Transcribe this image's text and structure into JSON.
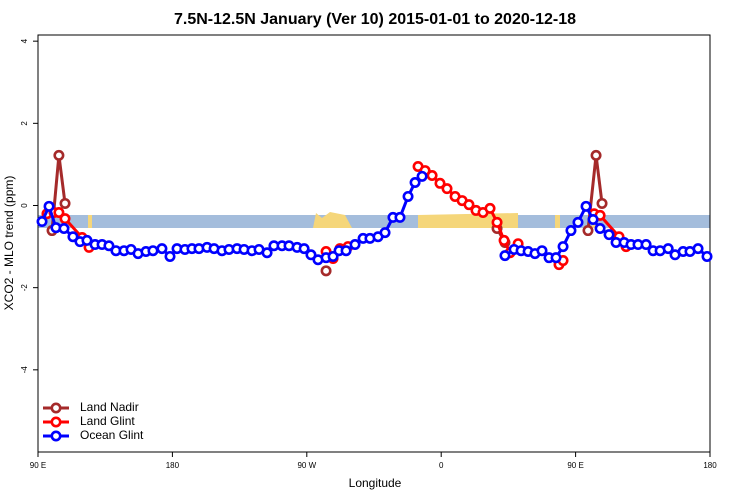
{
  "chart_data": {
    "type": "line",
    "title": "7.5N-12.5N January (Ver 10)   2015-01-01 to 2020-12-18",
    "xlabel": "Longitude",
    "ylabel": "XCO2 - MLO trend (ppm)",
    "xlim": [
      90,
      540
    ],
    "ylim": [
      -6,
      4.15
    ],
    "xticks": [
      {
        "value": 90,
        "label": "90 E"
      },
      {
        "value": 180,
        "label": "180"
      },
      {
        "value": 270,
        "label": "90 W"
      },
      {
        "value": 360,
        "label": "0"
      },
      {
        "value": 450,
        "label": "90 E"
      },
      {
        "value": 540,
        "label": "180"
      }
    ],
    "yticks": [
      -4,
      -2,
      0,
      2,
      4
    ],
    "legend": "bottomleft",
    "series": [
      {
        "name": "Land Nadir",
        "color": "#a52a2a",
        "x": [
          99.4,
          104,
          108.1,
          200,
          282.9,
          350,
          397.4,
          402.7,
          430,
          458.3,
          463.7,
          467.7
        ],
        "values": [
          -0.61,
          1.22,
          0.05,
          null,
          -1.59,
          null,
          -0.56,
          -0.9,
          null,
          -0.61,
          1.22,
          0.05
        ]
      },
      {
        "name": "Land Glint",
        "color": "#ff0000",
        "x": [
          96,
          100.7,
          104,
          108.1,
          119.5,
          124.2,
          200,
          282.9,
          287.6,
          292.2,
          297.6,
          320,
          344.5,
          349.2,
          353.9,
          359.2,
          363.9,
          369.3,
          374,
          378.6,
          383.3,
          388,
          392.7,
          397.4,
          402.1,
          406.1,
          411.5,
          425,
          438.9,
          441.6,
          450,
          462.4,
          466.4,
          479.1,
          483.8
        ],
        "values": [
          -0.2,
          -0.17,
          -0.17,
          -0.32,
          -0.78,
          -1.02,
          null,
          -1.12,
          -1.29,
          -1.05,
          -1.0,
          null,
          0.95,
          0.85,
          0.73,
          0.54,
          0.41,
          0.22,
          0.12,
          0.02,
          -0.12,
          -0.17,
          -0.07,
          -0.41,
          -0.85,
          -1.15,
          -0.93,
          null,
          -1.44,
          -1.34,
          null,
          -0.2,
          -0.24,
          -0.76,
          -1.0
        ]
      },
      {
        "name": "Ocean Glint",
        "color": "#0000ff",
        "x": [
          92.7,
          97.4,
          102,
          107.4,
          113.4,
          118.1,
          122.8,
          128.2,
          132.9,
          137.5,
          142.2,
          147.6,
          152.3,
          157,
          162.3,
          167,
          173,
          178.4,
          183.1,
          188.4,
          193.1,
          197.8,
          203.2,
          207.9,
          213.2,
          217.9,
          223.3,
          228,
          233.3,
          238,
          243.4,
          248,
          253.4,
          258.1,
          263.5,
          268.2,
          272.8,
          277.5,
          282.9,
          287.6,
          291.6,
          296.3,
          302.3,
          307.7,
          312.3,
          317.7,
          322.4,
          327.7,
          332.4,
          337.8,
          342.5,
          347.2,
          375,
          402.7,
          408.8,
          413.5,
          418.2,
          422.8,
          427.5,
          432.2,
          436.9,
          441.6,
          446.9,
          451.6,
          457,
          461.7,
          466.4,
          472.4,
          477.1,
          482.5,
          487.1,
          491.8,
          497.2,
          501.9,
          506.6,
          512,
          516.6,
          522,
          526.6,
          532,
          538
        ],
        "values": [
          -0.39,
          -0.02,
          -0.54,
          -0.56,
          -0.76,
          -0.88,
          -0.85,
          -0.95,
          -0.95,
          -0.98,
          -1.1,
          -1.1,
          -1.07,
          -1.17,
          -1.12,
          -1.1,
          -1.05,
          -1.24,
          -1.05,
          -1.07,
          -1.05,
          -1.05,
          -1.02,
          -1.05,
          -1.1,
          -1.07,
          -1.05,
          -1.07,
          -1.1,
          -1.07,
          -1.15,
          -0.98,
          -0.98,
          -0.98,
          -1.02,
          -1.05,
          -1.2,
          -1.32,
          -1.27,
          -1.24,
          -1.1,
          -1.1,
          -0.95,
          -0.8,
          -0.8,
          -0.76,
          -0.66,
          -0.29,
          -0.29,
          0.22,
          0.56,
          0.71,
          null,
          -1.22,
          -1.07,
          -1.1,
          -1.12,
          -1.17,
          -1.1,
          -1.27,
          -1.27,
          -1.0,
          -0.61,
          -0.41,
          -0.02,
          -0.34,
          -0.56,
          -0.71,
          -0.9,
          -0.9,
          -0.95,
          -0.95,
          -0.95,
          -1.1,
          -1.1,
          -1.05,
          -1.2,
          -1.12,
          -1.12,
          -1.05,
          -1.24
        ]
      }
    ]
  }
}
